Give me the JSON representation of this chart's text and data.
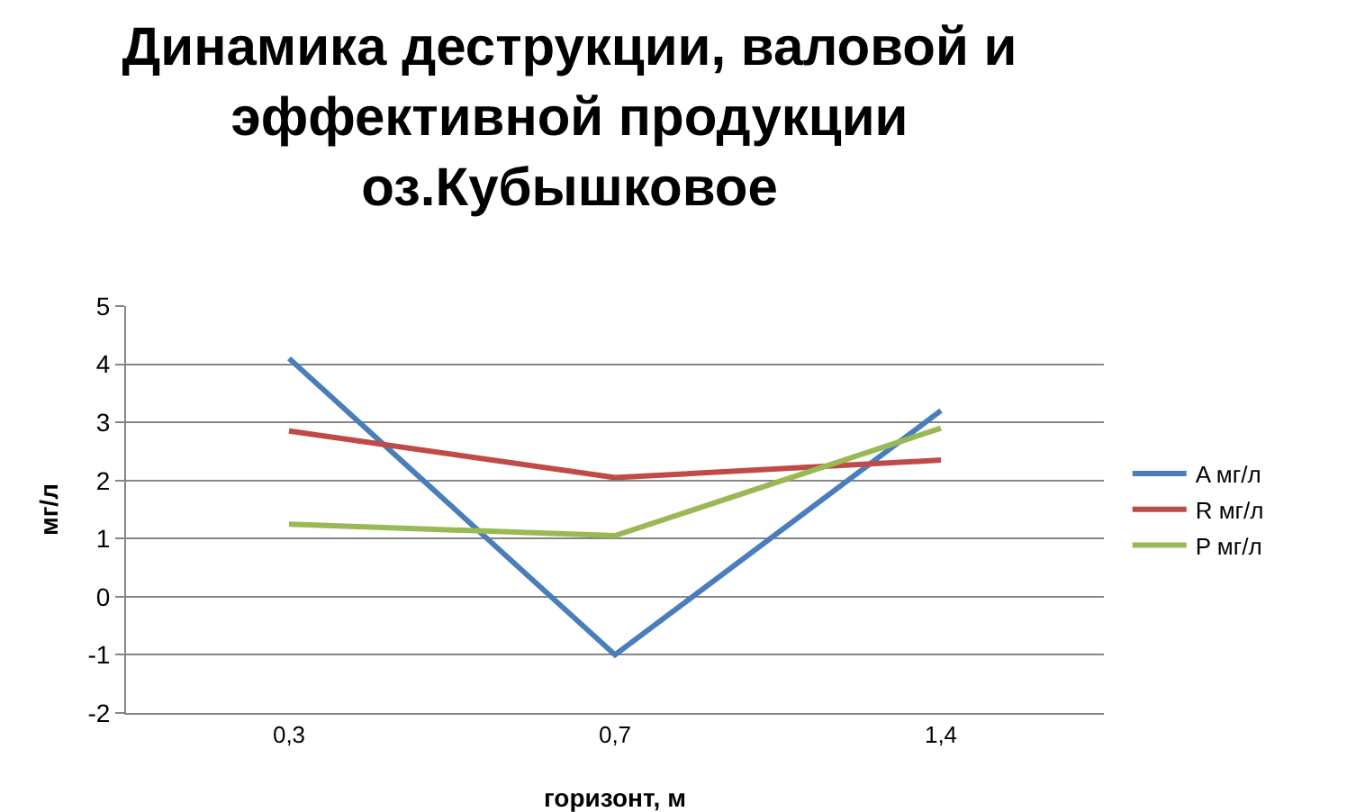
{
  "chart_data": {
    "type": "line",
    "title": "Динамика деструкции, валовой и эффективной продукции оз.Кубышковое",
    "xlabel": "горизонт, м",
    "ylabel": "мг/л",
    "categories": [
      "0,3",
      "0,7",
      "1,4"
    ],
    "series": [
      {
        "name": "A мг/л",
        "color": "#4a7ebb",
        "values": [
          4.1,
          -1.0,
          3.2
        ]
      },
      {
        "name": "R мг/л",
        "color": "#be4b48",
        "values": [
          2.85,
          2.05,
          2.35
        ]
      },
      {
        "name": "P мг/л",
        "color": "#98b954",
        "values": [
          1.25,
          1.05,
          2.9
        ]
      }
    ],
    "ylim": [
      -2,
      5
    ],
    "yticks": [
      -2,
      -1,
      0,
      1,
      2,
      3,
      4,
      5
    ],
    "grid": "y",
    "legend": "right",
    "marker": "none",
    "line_style": "solid"
  }
}
